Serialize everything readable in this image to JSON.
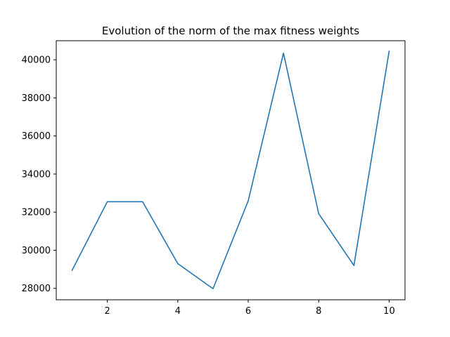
{
  "chart_data": {
    "type": "line",
    "title": "Evolution of the norm of the max fitness weights",
    "xlabel": "",
    "ylabel": "",
    "x": [
      1,
      2,
      3,
      4,
      5,
      6,
      7,
      8,
      9,
      10
    ],
    "series": [
      {
        "values": [
          28950,
          32550,
          32550,
          29300,
          27980,
          32600,
          40350,
          31920,
          29200,
          40450
        ],
        "color": "#1f77b4"
      }
    ],
    "xlim": [
      0.55,
      10.45
    ],
    "ylim": [
      27400,
      41000
    ],
    "x_ticks": [
      2,
      4,
      6,
      8,
      10
    ],
    "x_tick_labels": [
      "2",
      "4",
      "6",
      "8",
      "10"
    ],
    "y_ticks": [
      28000,
      30000,
      32000,
      34000,
      36000,
      38000,
      40000
    ],
    "y_tick_labels": [
      "28000",
      "30000",
      "32000",
      "34000",
      "36000",
      "38000",
      "40000"
    ],
    "grid": false,
    "legend": "none"
  }
}
